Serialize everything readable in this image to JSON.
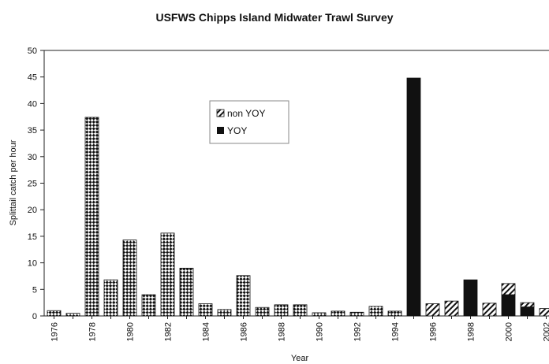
{
  "chart_data": {
    "type": "bar",
    "stacked": true,
    "title": "USFWS Chipps Island Midwater Trawl Survey",
    "xlabel": "Year",
    "ylabel": "Splittail catch per hour",
    "ylim": [
      0,
      50
    ],
    "yticks": [
      0,
      5,
      10,
      15,
      20,
      25,
      30,
      35,
      40,
      45,
      50
    ],
    "categories": [
      "1976",
      "1977",
      "1978",
      "1979",
      "1980",
      "1981",
      "1982",
      "1983",
      "1984",
      "1985",
      "1986",
      "1987",
      "1988",
      "1989",
      "1990",
      "1991",
      "1992",
      "1993",
      "1994",
      "1995",
      "1996",
      "1997",
      "1998",
      "1999",
      "2000",
      "2001",
      "2002"
    ],
    "xtick_labels": [
      "1976",
      "1978",
      "1980",
      "1982",
      "1984",
      "1986",
      "1988",
      "1990",
      "1992",
      "1994",
      "1996",
      "1998",
      "2000",
      "2002"
    ],
    "series": [
      {
        "name": "non YOY",
        "pattern": "diagonal-hatch",
        "values": [
          0,
          0,
          0,
          0,
          0,
          0,
          0,
          0,
          0,
          0,
          0,
          0,
          0,
          0,
          0,
          0,
          0,
          0,
          0,
          0,
          2.3,
          2.8,
          0,
          2.4,
          2.1,
          0.8,
          1.4
        ]
      },
      {
        "name": "YOY",
        "pattern": "solid",
        "values": [
          0,
          0,
          0,
          0,
          0,
          0,
          0,
          0,
          0,
          0,
          0,
          0,
          0,
          0,
          0,
          0,
          0,
          0,
          0,
          44.8,
          0,
          0,
          6.8,
          0,
          4.0,
          1.7,
          0
        ]
      },
      {
        "pattern": "checkerboard",
        "values": [
          1.0,
          0.5,
          37.4,
          6.8,
          14.3,
          4.0,
          15.6,
          9.0,
          2.3,
          1.2,
          7.6,
          1.6,
          2.1,
          2.1,
          0.6,
          0.9,
          0.7,
          1.8,
          0.9,
          0,
          0,
          0,
          0,
          0,
          0,
          0,
          0
        ]
      }
    ],
    "legend": {
      "entries": [
        "non YOY",
        "YOY"
      ],
      "placement": "upper-center"
    },
    "grid": false,
    "colors": {
      "dark": "#111111",
      "background": "#ffffff"
    }
  }
}
